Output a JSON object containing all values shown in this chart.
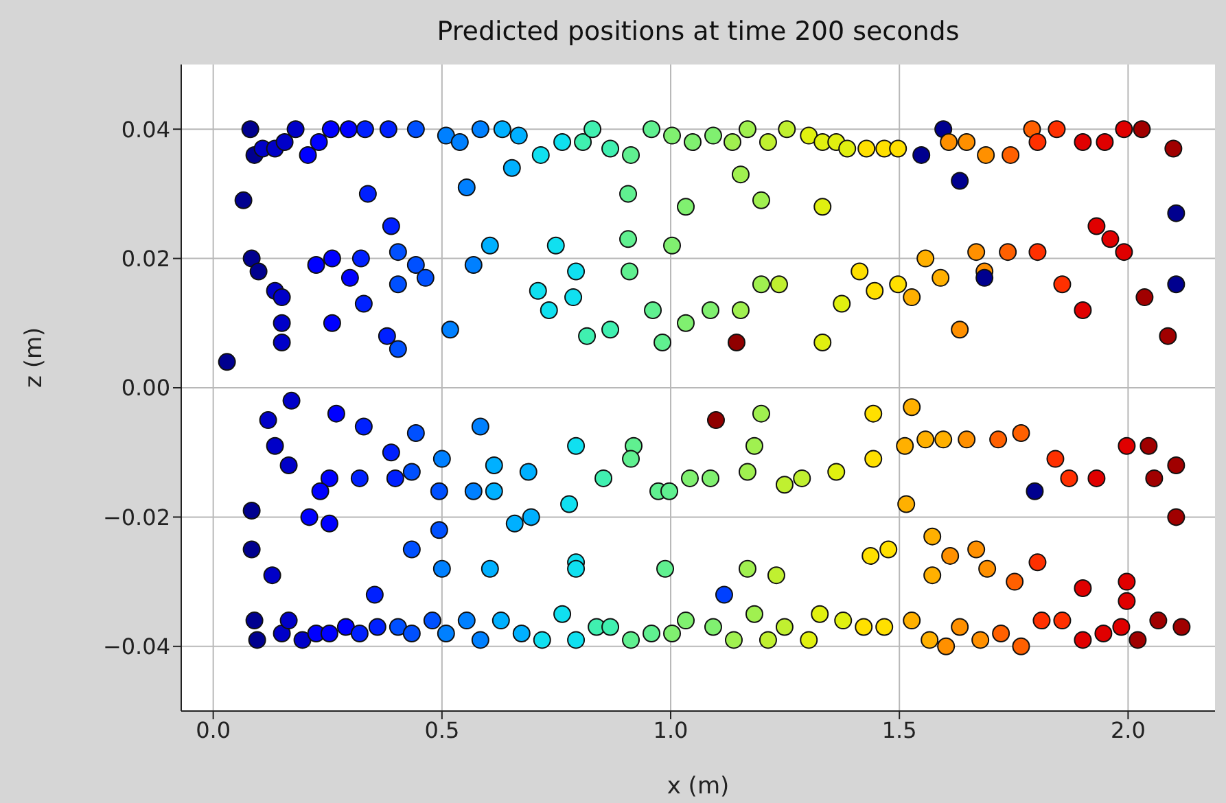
{
  "chart_data": {
    "type": "scatter",
    "title": "Predicted positions at time 200 seconds",
    "xlabel": "x (m)",
    "ylabel": "z (m)",
    "x": [
      0.09,
      0.081,
      0.108,
      0.135,
      0.156,
      0.18,
      0.207,
      0.231,
      0.257,
      0.296,
      0.332,
      0.383,
      0.443,
      0.509,
      0.539,
      0.584,
      0.632,
      0.668,
      0.716,
      0.763,
      0.808,
      0.829,
      0.868,
      0.913,
      0.958,
      1.003,
      1.048,
      1.093,
      1.135,
      1.168,
      1.213,
      1.254,
      1.302,
      1.332,
      1.362,
      1.386,
      1.428,
      1.467,
      1.497,
      1.548,
      1.596,
      1.608,
      1.647,
      1.689,
      1.743,
      1.79,
      1.802,
      1.844,
      1.901,
      1.949,
      1.991,
      2.03,
      2.099,
      0.09,
      0.096,
      0.15,
      0.165,
      0.195,
      0.225,
      0.254,
      0.29,
      0.32,
      0.359,
      0.404,
      0.434,
      0.479,
      0.509,
      0.554,
      0.584,
      0.629,
      0.674,
      0.719,
      0.763,
      0.793,
      0.838,
      0.868,
      0.913,
      0.958,
      1.003,
      1.033,
      1.093,
      1.138,
      1.183,
      1.213,
      1.249,
      1.302,
      1.326,
      1.377,
      1.422,
      1.467,
      1.527,
      1.566,
      1.602,
      1.632,
      1.677,
      1.722,
      1.766,
      1.811,
      1.856,
      1.901,
      1.946,
      1.985,
      2.021,
      2.066,
      2.117,
      0.066,
      0.03,
      0.084,
      0.099,
      0.135,
      0.15,
      0.15,
      0.225,
      0.26,
      0.323,
      0.299,
      0.329,
      0.26,
      0.15,
      0.389,
      0.404,
      0.404,
      0.443,
      0.464,
      0.404,
      0.38,
      0.518,
      0.569,
      0.605,
      0.554,
      0.653,
      0.71,
      0.793,
      0.787,
      0.749,
      0.734,
      0.817,
      0.868,
      0.91,
      0.907,
      1.003,
      0.961,
      0.982,
      1.033,
      1.087,
      1.153,
      1.198,
      1.237,
      1.332,
      1.374,
      1.413,
      1.446,
      1.497,
      1.557,
      1.59,
      1.632,
      1.632,
      1.527,
      1.686,
      1.668,
      1.737,
      1.802,
      1.856,
      1.901,
      1.931,
      1.991,
      1.961,
      2.036,
      2.087,
      2.105,
      2.105,
      1.686,
      1.144,
      1.099,
      1.117,
      1.796,
      1.332,
      1.198,
      1.153,
      1.033,
      0.907,
      0.338,
      0.171,
      0.12,
      0.135,
      0.165,
      0.269,
      0.329,
      0.254,
      0.234,
      0.32,
      0.389,
      0.398,
      0.434,
      0.443,
      0.5,
      0.494,
      0.569,
      0.614,
      0.689,
      0.659,
      0.695,
      0.778,
      0.793,
      0.853,
      0.919,
      0.913,
      0.973,
      0.997,
      1.042,
      1.087,
      1.183,
      1.198,
      1.168,
      1.249,
      1.287,
      1.362,
      1.443,
      1.443,
      1.512,
      1.515,
      1.527,
      1.557,
      1.596,
      1.647,
      1.716,
      1.766,
      1.841,
      1.871,
      1.931,
      1.997,
      2.045,
      2.057,
      2.105,
      2.105,
      1.437,
      1.476,
      1.572,
      1.572,
      1.611,
      1.692,
      1.668,
      1.752,
      1.802,
      1.901,
      1.997,
      1.997,
      1.231,
      1.168,
      0.988,
      0.793,
      0.793,
      0.605,
      0.434,
      0.5,
      0.353,
      0.084,
      0.129,
      0.084,
      0.21,
      0.254,
      0.494,
      0.614,
      0.584
    ],
    "values": [
      0.036,
      0.04,
      0.037,
      0.037,
      0.038,
      0.04,
      0.036,
      0.038,
      0.04,
      0.04,
      0.04,
      0.04,
      0.04,
      0.039,
      0.038,
      0.04,
      0.04,
      0.039,
      0.036,
      0.038,
      0.038,
      0.04,
      0.037,
      0.036,
      0.04,
      0.039,
      0.038,
      0.039,
      0.038,
      0.04,
      0.038,
      0.04,
      0.039,
      0.038,
      0.038,
      0.037,
      0.037,
      0.037,
      0.037,
      0.036,
      0.04,
      0.038,
      0.038,
      0.036,
      0.036,
      0.04,
      0.038,
      0.04,
      0.038,
      0.038,
      0.04,
      0.04,
      0.037,
      -0.036,
      -0.039,
      -0.038,
      -0.036,
      -0.039,
      -0.038,
      -0.038,
      -0.037,
      -0.038,
      -0.037,
      -0.037,
      -0.038,
      -0.036,
      -0.038,
      -0.036,
      -0.039,
      -0.036,
      -0.038,
      -0.039,
      -0.035,
      -0.039,
      -0.037,
      -0.037,
      -0.039,
      -0.038,
      -0.038,
      -0.036,
      -0.037,
      -0.039,
      -0.035,
      -0.039,
      -0.037,
      -0.039,
      -0.035,
      -0.036,
      -0.037,
      -0.037,
      -0.036,
      -0.039,
      -0.04,
      -0.037,
      -0.039,
      -0.038,
      -0.04,
      -0.036,
      -0.036,
      -0.039,
      -0.038,
      -0.037,
      -0.039,
      -0.036,
      -0.037,
      0.029,
      0.004,
      0.02,
      0.018,
      0.015,
      0.014,
      0.01,
      0.019,
      0.02,
      0.02,
      0.017,
      0.013,
      0.01,
      0.007,
      0.025,
      0.021,
      0.016,
      0.019,
      0.017,
      0.006,
      0.008,
      0.009,
      0.019,
      0.022,
      0.031,
      0.034,
      0.015,
      0.018,
      0.014,
      0.022,
      0.012,
      0.008,
      0.009,
      0.018,
      0.023,
      0.022,
      0.012,
      0.007,
      0.01,
      0.012,
      0.012,
      0.016,
      0.016,
      0.007,
      0.013,
      0.018,
      0.015,
      0.016,
      0.02,
      0.017,
      0.009,
      0.032,
      0.014,
      0.018,
      0.021,
      0.021,
      0.021,
      0.016,
      0.012,
      0.025,
      0.021,
      0.023,
      0.014,
      0.008,
      0.027,
      0.016,
      0.017,
      0.007,
      -0.005,
      -0.032,
      -0.016,
      0.028,
      0.029,
      0.033,
      0.028,
      0.03,
      0.03,
      -0.002,
      -0.005,
      -0.009,
      -0.012,
      -0.004,
      -0.006,
      -0.014,
      -0.016,
      -0.014,
      -0.01,
      -0.014,
      -0.013,
      -0.007,
      -0.011,
      -0.016,
      -0.016,
      -0.016,
      -0.013,
      -0.021,
      -0.02,
      -0.018,
      -0.009,
      -0.014,
      -0.009,
      -0.011,
      -0.016,
      -0.016,
      -0.014,
      -0.014,
      -0.009,
      -0.004,
      -0.013,
      -0.015,
      -0.014,
      -0.013,
      -0.011,
      -0.004,
      -0.009,
      -0.018,
      -0.003,
      -0.008,
      -0.008,
      -0.008,
      -0.008,
      -0.007,
      -0.011,
      -0.014,
      -0.014,
      -0.009,
      -0.009,
      -0.014,
      -0.012,
      -0.02,
      -0.026,
      -0.025,
      -0.023,
      -0.029,
      -0.026,
      -0.028,
      -0.025,
      -0.03,
      -0.027,
      -0.031,
      -0.03,
      -0.033,
      -0.029,
      -0.028,
      -0.028,
      -0.027,
      -0.028,
      -0.028,
      -0.025,
      -0.028,
      -0.032,
      -0.025,
      -0.029,
      -0.019,
      -0.02,
      -0.021,
      -0.022,
      -0.012,
      -0.006
    ],
    "colors": [
      "#00008f",
      "#00008f",
      "#0000c8",
      "#0000c8",
      "#0000c8",
      "#0000c8",
      "#0000ff",
      "#0000ff",
      "#0000ff",
      "#0000ff",
      "#0020ff",
      "#0020ff",
      "#0050ff",
      "#0080ff",
      "#0080ff",
      "#0080ff",
      "#00b0ff",
      "#00b0ff",
      "#10e0f0",
      "#10e0f0",
      "#40f0b0",
      "#40f0b0",
      "#40f0b0",
      "#60f090",
      "#60f090",
      "#80f070",
      "#80f070",
      "#80f070",
      "#a0f050",
      "#a0f050",
      "#c0f030",
      "#c0f030",
      "#e0f010",
      "#e0f010",
      "#e0f010",
      "#e0f010",
      "#ffe000",
      "#ffe000",
      "#ffe000",
      "#00008f",
      "#00008f",
      "#ff9000",
      "#ff9000",
      "#ff9000",
      "#ff6000",
      "#ff6000",
      "#ff3000",
      "#ff3000",
      "#e00000",
      "#e00000",
      "#e00000",
      "#a00000",
      "#a00000",
      "#00008f",
      "#00008f",
      "#0000c8",
      "#0000c8",
      "#0000c8",
      "#0000ff",
      "#0000ff",
      "#0000ff",
      "#0020ff",
      "#0020ff",
      "#0050ff",
      "#0050ff",
      "#0050ff",
      "#0080ff",
      "#0080ff",
      "#0080ff",
      "#00b0ff",
      "#00b0ff",
      "#10e0f0",
      "#10e0f0",
      "#10e0f0",
      "#40f0b0",
      "#40f0b0",
      "#60f090",
      "#60f090",
      "#80f070",
      "#80f070",
      "#80f070",
      "#a0f050",
      "#a0f050",
      "#c0f030",
      "#c0f030",
      "#e0f010",
      "#e0f010",
      "#e0f010",
      "#ffe000",
      "#ffe000",
      "#ffb000",
      "#ffb000",
      "#ff9000",
      "#ff9000",
      "#ff9000",
      "#ff6000",
      "#ff6000",
      "#ff3000",
      "#ff3000",
      "#e00000",
      "#e00000",
      "#e00000",
      "#a00000",
      "#a00000",
      "#a00000",
      "#00008f",
      "#00008f",
      "#00008f",
      "#00008f",
      "#0000c8",
      "#0000c8",
      "#0000c8",
      "#0000ff",
      "#0000ff",
      "#0020ff",
      "#0000ff",
      "#0020ff",
      "#0000ff",
      "#0000c8",
      "#0020ff",
      "#0050ff",
      "#0050ff",
      "#0050ff",
      "#0050ff",
      "#0050ff",
      "#0020ff",
      "#0080ff",
      "#0080ff",
      "#00b0ff",
      "#0080ff",
      "#00b0ff",
      "#10e0f0",
      "#10e0f0",
      "#10e0f0",
      "#10e0f0",
      "#10e0f0",
      "#40f0b0",
      "#40f0b0",
      "#60f090",
      "#60f090",
      "#80f070",
      "#60f090",
      "#60f090",
      "#80f070",
      "#80f070",
      "#a0f050",
      "#a0f050",
      "#c0f030",
      "#e0f010",
      "#e0f010",
      "#ffe000",
      "#ffe000",
      "#ffe000",
      "#ffb000",
      "#ffb000",
      "#ff9000",
      "#00008f",
      "#ffb000",
      "#ff9000",
      "#ff9000",
      "#ff6000",
      "#ff3000",
      "#ff3000",
      "#e00000",
      "#e00000",
      "#e00000",
      "#e00000",
      "#a00000",
      "#a00000",
      "#00008f",
      "#00008f",
      "#00008f",
      "#900000",
      "#900000",
      "#0040ff",
      "#00008f",
      "#e0f010",
      "#a0f050",
      "#a0f050",
      "#80f070",
      "#60f090",
      "#0020ff",
      "#0000c8",
      "#0000c8",
      "#0000c8",
      "#0000c8",
      "#0000ff",
      "#0020ff",
      "#0000ff",
      "#0000ff",
      "#0020ff",
      "#0020ff",
      "#0020ff",
      "#0050ff",
      "#0050ff",
      "#0080ff",
      "#0050ff",
      "#0080ff",
      "#00b0ff",
      "#00b0ff",
      "#00b0ff",
      "#00b0ff",
      "#10e0f0",
      "#10e0f0",
      "#40f0b0",
      "#60f090",
      "#60f090",
      "#60f090",
      "#60f090",
      "#80f070",
      "#80f070",
      "#a0f050",
      "#a0f050",
      "#a0f050",
      "#c0f030",
      "#c0f030",
      "#e0f010",
      "#ffe000",
      "#ffe000",
      "#ffb000",
      "#ffb000",
      "#ffb000",
      "#ffb000",
      "#ffb000",
      "#ff9000",
      "#ff6000",
      "#ff6000",
      "#ff3000",
      "#ff3000",
      "#e00000",
      "#e00000",
      "#a00000",
      "#a00000",
      "#a00000",
      "#a00000",
      "#ffe000",
      "#ffe000",
      "#ffb000",
      "#ffb000",
      "#ff9000",
      "#ff9000",
      "#ff9000",
      "#ff6000",
      "#ff3000",
      "#e00000",
      "#e00000",
      "#e00000",
      "#c0f030",
      "#a0f050",
      "#60f090",
      "#10e0f0",
      "#10e0f0",
      "#00b0ff",
      "#0050ff",
      "#0080ff",
      "#0020ff",
      "#00008f",
      "#0000c8",
      "#00008f",
      "#0000ff",
      "#0000ff",
      "#0050ff",
      "#00b0ff",
      "#0080ff"
    ],
    "xlim": [
      -0.07,
      2.19
    ],
    "ylim": [
      -0.05,
      0.05
    ],
    "xticks": [
      {
        "value": 0,
        "label": "0.0"
      },
      0.5,
      {
        "value": 1,
        "label": "1.0"
      },
      1.5,
      {
        "value": 2,
        "label": "2.0"
      }
    ],
    "yticks": [
      {
        "value": -0.04,
        "label": "−0.04"
      },
      {
        "value": -0.02,
        "label": "−0.02"
      },
      {
        "value": 0,
        "label": "0.00"
      },
      0.02,
      0.04
    ],
    "grid": true,
    "marker": "circle"
  }
}
